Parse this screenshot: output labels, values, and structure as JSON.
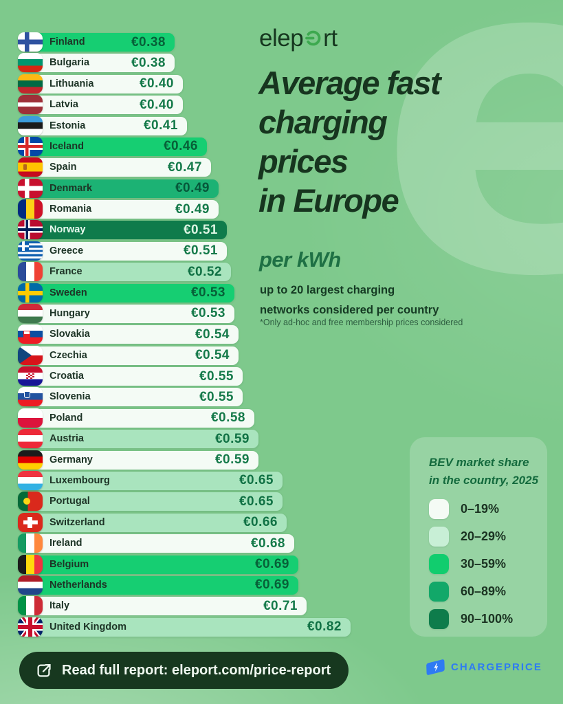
{
  "header": {
    "logo_left": "elep",
    "logo_right": "rt",
    "title_lines": [
      "Average fast",
      "charging",
      "prices",
      "in Europe"
    ],
    "per_kwh": "per kWh",
    "note_lines": [
      "up to 20 largest charging",
      "networks considered per country"
    ],
    "footnote": "*Only ad-hoc and free membership prices considered"
  },
  "chart_data": {
    "type": "bar",
    "orientation": "horizontal",
    "title": "Average fast charging prices in Europe per kWh",
    "unit": "EUR per kWh",
    "xlim": [
      0,
      0.82
    ],
    "color_encoding": "BEV market share in the country, 2025",
    "countries": [
      {
        "name": "Finland",
        "flag": "fi",
        "value": 0.38,
        "label": "€0.38",
        "bev_share": "30-59"
      },
      {
        "name": "Bulgaria",
        "flag": "bg",
        "value": 0.38,
        "label": "€0.38",
        "bev_share": "0-19"
      },
      {
        "name": "Lithuania",
        "flag": "lt",
        "value": 0.4,
        "label": "€0.40",
        "bev_share": "0-19"
      },
      {
        "name": "Latvia",
        "flag": "lv",
        "value": 0.4,
        "label": "€0.40",
        "bev_share": "0-19"
      },
      {
        "name": "Estonia",
        "flag": "ee",
        "value": 0.41,
        "label": "€0.41",
        "bev_share": "0-19"
      },
      {
        "name": "Iceland",
        "flag": "is",
        "value": 0.46,
        "label": "€0.46",
        "bev_share": "30-59"
      },
      {
        "name": "Spain",
        "flag": "es",
        "value": 0.47,
        "label": "€0.47",
        "bev_share": "0-19"
      },
      {
        "name": "Denmark",
        "flag": "dk",
        "value": 0.49,
        "label": "€0.49",
        "bev_share": "60-89"
      },
      {
        "name": "Romania",
        "flag": "ro",
        "value": 0.49,
        "label": "€0.49",
        "bev_share": "0-19"
      },
      {
        "name": "Norway",
        "flag": "no",
        "value": 0.51,
        "label": "€0.51",
        "bev_share": "90-100"
      },
      {
        "name": "Greece",
        "flag": "gr",
        "value": 0.51,
        "label": "€0.51",
        "bev_share": "0-19"
      },
      {
        "name": "France",
        "flag": "fr",
        "value": 0.52,
        "label": "€0.52",
        "bev_share": "20-29"
      },
      {
        "name": "Sweden",
        "flag": "se",
        "value": 0.53,
        "label": "€0.53",
        "bev_share": "30-59"
      },
      {
        "name": "Hungary",
        "flag": "hu",
        "value": 0.53,
        "label": "€0.53",
        "bev_share": "0-19"
      },
      {
        "name": "Slovakia",
        "flag": "sk",
        "value": 0.54,
        "label": "€0.54",
        "bev_share": "0-19"
      },
      {
        "name": "Czechia",
        "flag": "cz",
        "value": 0.54,
        "label": "€0.54",
        "bev_share": "0-19"
      },
      {
        "name": "Croatia",
        "flag": "hr",
        "value": 0.55,
        "label": "€0.55",
        "bev_share": "0-19"
      },
      {
        "name": "Slovenia",
        "flag": "si",
        "value": 0.55,
        "label": "€0.55",
        "bev_share": "0-19"
      },
      {
        "name": "Poland",
        "flag": "pl",
        "value": 0.58,
        "label": "€0.58",
        "bev_share": "0-19"
      },
      {
        "name": "Austria",
        "flag": "at",
        "value": 0.59,
        "label": "€0.59",
        "bev_share": "20-29"
      },
      {
        "name": "Germany",
        "flag": "de",
        "value": 0.59,
        "label": "€0.59",
        "bev_share": "0-19"
      },
      {
        "name": "Luxembourg",
        "flag": "lu",
        "value": 0.65,
        "label": "€0.65",
        "bev_share": "20-29"
      },
      {
        "name": "Portugal",
        "flag": "pt",
        "value": 0.65,
        "label": "€0.65",
        "bev_share": "20-29"
      },
      {
        "name": "Switzerland",
        "flag": "ch",
        "value": 0.66,
        "label": "€0.66",
        "bev_share": "20-29"
      },
      {
        "name": "Ireland",
        "flag": "ie",
        "value": 0.68,
        "label": "€0.68",
        "bev_share": "0-19"
      },
      {
        "name": "Belgium",
        "flag": "be",
        "value": 0.69,
        "label": "€0.69",
        "bev_share": "30-59"
      },
      {
        "name": "Netherlands",
        "flag": "nl",
        "value": 0.69,
        "label": "€0.69",
        "bev_share": "30-59"
      },
      {
        "name": "Italy",
        "flag": "it",
        "value": 0.71,
        "label": "€0.71",
        "bev_share": "0-19"
      },
      {
        "name": "United Kingdom",
        "flag": "gb",
        "value": 0.82,
        "label": "€0.82",
        "bev_share": "20-29"
      }
    ],
    "tier_colors": {
      "0-19": "#F4FBF5",
      "20-29": "#A9E4BE",
      "30-59": "#16CE72",
      "60-89": "#1CB274",
      "90-100": "#0F7B4B"
    }
  },
  "legend": {
    "title_lines": [
      "BEV market share",
      "in the country, 2025"
    ],
    "items": [
      {
        "range": "0–19%",
        "color": "#F4FBF5"
      },
      {
        "range": "20–29%",
        "color": "#C8EFD6"
      },
      {
        "range": "30–59%",
        "color": "#11CD6E"
      },
      {
        "range": "60–89%",
        "color": "#12A869"
      },
      {
        "range": "90–100%",
        "color": "#0E7C4B"
      }
    ]
  },
  "footer": {
    "link_label": "Read full report: eleport.com/price-report",
    "partner": "CHARGEPRICE"
  },
  "colors": {
    "background": "#7EC98C",
    "title": "#17351F",
    "accent_green": "#1E7044",
    "pill_background": "#17381F",
    "partner_blue": "#2E7BF3"
  }
}
